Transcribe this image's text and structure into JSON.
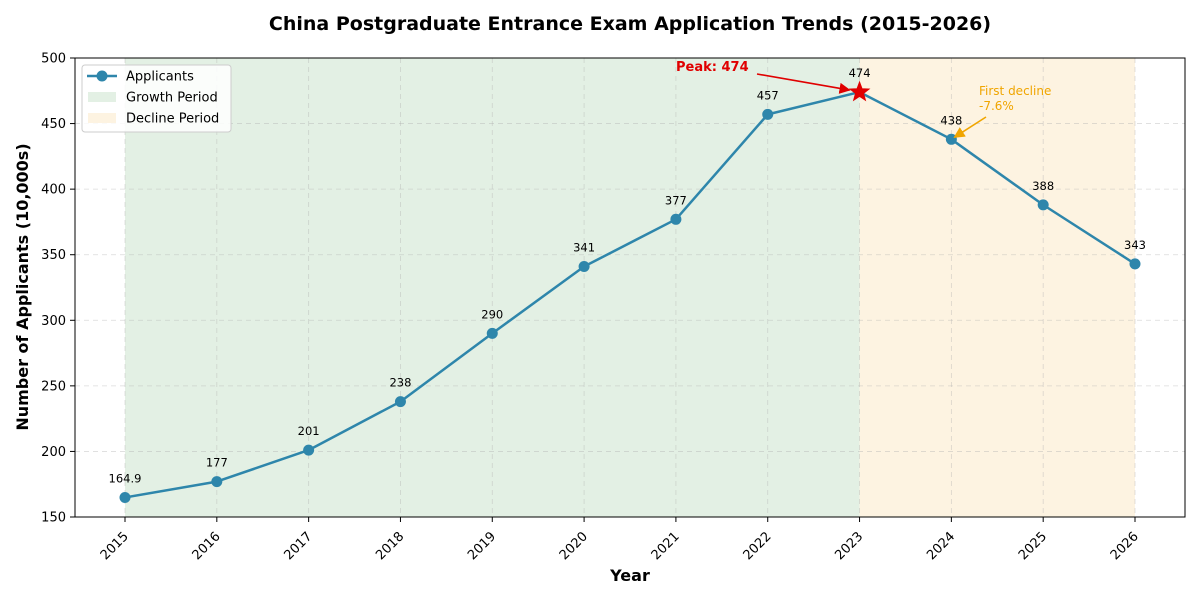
{
  "chart_data": {
    "type": "line",
    "title": "China Postgraduate Entrance Exam Application Trends (2015-2026)",
    "xlabel": "Year",
    "ylabel": "Number of Applicants (10,000s)",
    "x": [
      2015,
      2016,
      2017,
      2018,
      2019,
      2020,
      2021,
      2022,
      2023,
      2024,
      2025,
      2026
    ],
    "x_tick_labels": [
      "2015",
      "2016",
      "2017",
      "2018",
      "2019",
      "2020",
      "2021",
      "2022",
      "2023",
      "2024",
      "2025",
      "2026"
    ],
    "series": [
      {
        "name": "Applicants",
        "values": [
          164.9,
          177,
          201,
          238,
          290,
          341,
          377,
          457,
          474,
          438,
          388,
          343
        ],
        "data_labels": [
          "164.9",
          "177",
          "201",
          "238",
          "290",
          "341",
          "377",
          "457",
          "474",
          "438",
          "388",
          "343"
        ],
        "color": "#2e86ab"
      }
    ],
    "ylim": [
      150,
      500
    ],
    "y_ticks": [
      150,
      200,
      250,
      300,
      350,
      400,
      450,
      500
    ],
    "grid": true,
    "legend_position": "upper left",
    "legend": [
      {
        "label": "Applicants",
        "kind": "line-marker",
        "color": "#2e86ab"
      },
      {
        "label": "Growth Period",
        "kind": "patch",
        "color": "#e3f0e4"
      },
      {
        "label": "Decline Period",
        "kind": "patch",
        "color": "#fdf3e1"
      }
    ],
    "shaded_regions": [
      {
        "name": "Growth Period",
        "x_start": 2015,
        "x_end": 2023,
        "color": "#e3f0e4"
      },
      {
        "name": "Decline Period",
        "x_start": 2023,
        "x_end": 2026,
        "color": "#fdf3e1"
      }
    ],
    "annotations": [
      {
        "text": "Peak: 474",
        "target_x": 2023,
        "target_y": 474,
        "color": "#e00000",
        "marker": "star"
      },
      {
        "text_lines": [
          "First decline",
          "-7.6%"
        ],
        "target_x": 2024,
        "target_y": 438,
        "color": "#f0a500"
      }
    ]
  }
}
